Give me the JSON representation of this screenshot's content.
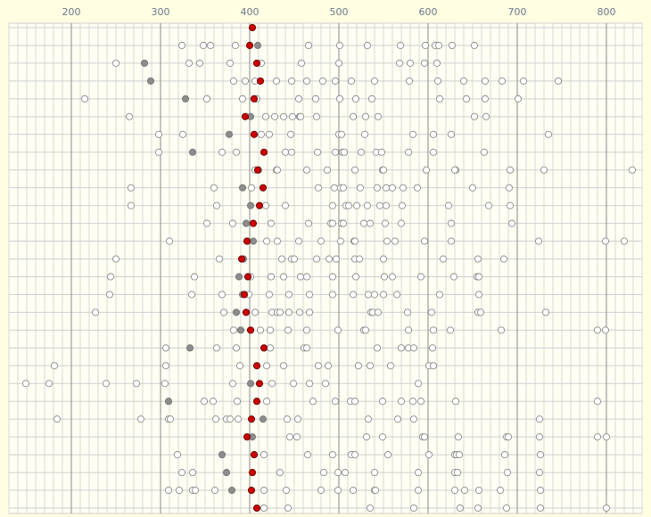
{
  "chart_data": {
    "type": "strip",
    "xlim": [
      130,
      840
    ],
    "xticks": [
      200,
      300,
      400,
      500,
      600,
      700,
      800
    ],
    "grid": true,
    "series": [
      {
        "color": "#ffffff",
        "values": [
          [],
          [
            324,
            356,
            348,
            384,
            466,
            501,
            532,
            569,
            597,
            608,
            612,
            627,
            652
          ],
          [
            250,
            332,
            344,
            378,
            413,
            458,
            500,
            568,
            580,
            596,
            610
          ],
          [
            382,
            395,
            406,
            430,
            447,
            464,
            482,
            496,
            514,
            540,
            579,
            611,
            640,
            664,
            683,
            707,
            746
          ],
          [
            215,
            352,
            392,
            408,
            455,
            474,
            501,
            519,
            537,
            613,
            643,
            664,
            701
          ],
          [
            265,
            418,
            428,
            438,
            448,
            456,
            457,
            475,
            516,
            530,
            544,
            652,
            665
          ],
          [
            298,
            325,
            413,
            422,
            446,
            500,
            503,
            529,
            583,
            606,
            626,
            735
          ],
          [
            298,
            369,
            385,
            440,
            447,
            476,
            496,
            504,
            506,
            525,
            542,
            548,
            578,
            606,
            663
          ],
          [
            406,
            410,
            430,
            431,
            464,
            487,
            518,
            549,
            550,
            598,
            631,
            630,
            692,
            730,
            829
          ],
          [
            267,
            360,
            402,
            477,
            495,
            502,
            505,
            524,
            543,
            553,
            560,
            572,
            588,
            650,
            691
          ],
          [
            267,
            363,
            418,
            440,
            493,
            508,
            511,
            520,
            532,
            546,
            553,
            571,
            623,
            668,
            692
          ],
          [
            352,
            381,
            424,
            466,
            491,
            493,
            503,
            505,
            528,
            535,
            552,
            570,
            626,
            694
          ],
          [
            310,
            397,
            419,
            431,
            455,
            480,
            502,
            517,
            518,
            554,
            563,
            596,
            626,
            724,
            799,
            820
          ],
          [
            250,
            366,
            436,
            447,
            450,
            475,
            489,
            497,
            518,
            523,
            550,
            617,
            656,
            685
          ],
          [
            244,
            338,
            401,
            424,
            438,
            457,
            464,
            493,
            519,
            551,
            560,
            592,
            629,
            655,
            657
          ],
          [
            243,
            335,
            369,
            399,
            422,
            444,
            467,
            493,
            516,
            533,
            540,
            550,
            565,
            613,
            657
          ],
          [
            227,
            371,
            406,
            425,
            431,
            434,
            444,
            456,
            467,
            536,
            538,
            544,
            577,
            604,
            656,
            659,
            732
          ],
          [
            382,
            412,
            423,
            443,
            464,
            499,
            528,
            530,
            578,
            606,
            625,
            682,
            790,
            799
          ],
          [
            306,
            363,
            385,
            423,
            461,
            464,
            543,
            570,
            578,
            584,
            605
          ],
          [
            181,
            306,
            389,
            419,
            438,
            477,
            488,
            522,
            535,
            558,
            601,
            606
          ],
          [
            149,
            175,
            239,
            273,
            305,
            381,
            425,
            449,
            467,
            485,
            589
          ],
          [
            349,
            359,
            386,
            419,
            471,
            496,
            513,
            518,
            549,
            570,
            583,
            592,
            631,
            790
          ],
          [
            184,
            278,
            309,
            311,
            362,
            374,
            378,
            387,
            442,
            454,
            533,
            566,
            584,
            725
          ],
          [
            445,
            453,
            531,
            549,
            594,
            596,
            634,
            688,
            690,
            725,
            790,
            800
          ],
          [
            319,
            416,
            465,
            493,
            514,
            518,
            555,
            601,
            630,
            632,
            635,
            686,
            726
          ],
          [
            324,
            336,
            434,
            483,
            499,
            507,
            540,
            589,
            630,
            633,
            689,
            725
          ],
          [
            309,
            321,
            336,
            339,
            361,
            416,
            441,
            480,
            499,
            516,
            540,
            541,
            589,
            630,
            641,
            657,
            681,
            726
          ],
          [
            416,
            443,
            535,
            584,
            636,
            656,
            688,
            726,
            800
          ]
        ]
      },
      {
        "color": "#8c8c8c",
        "values": [
          [],
          [
            409
          ],
          [
            282
          ],
          [
            289
          ],
          [
            328
          ],
          [
            401
          ],
          [
            377
          ],
          [
            336
          ],
          [],
          [
            392
          ],
          [
            401
          ],
          [
            396
          ],
          [
            404
          ],
          [
            393
          ],
          [
            388
          ],
          [
            392
          ],
          [
            385
          ],
          [
            390
          ],
          [
            333
          ],
          [],
          [
            401
          ],
          [
            309
          ],
          [
            415
          ],
          [
            403
          ],
          [
            369
          ],
          [
            374
          ],
          [
            380
          ],
          []
        ]
      },
      {
        "color": "#cc0000",
        "values": [
          [
            403
          ],
          [
            400
          ],
          [
            408
          ],
          [
            412
          ],
          [
            405
          ],
          [
            395
          ],
          [
            405
          ],
          [
            416
          ],
          [
            409
          ],
          [
            415
          ],
          [
            411
          ],
          [
            404
          ],
          [
            397
          ],
          [
            391
          ],
          [
            398
          ],
          [
            394
          ],
          [
            396
          ],
          [
            401
          ],
          [
            416
          ],
          [
            408
          ],
          [
            411
          ],
          [
            408
          ],
          [
            402
          ],
          [
            397
          ],
          [
            405
          ],
          [
            403
          ],
          [
            402
          ],
          [
            408
          ]
        ]
      }
    ]
  }
}
